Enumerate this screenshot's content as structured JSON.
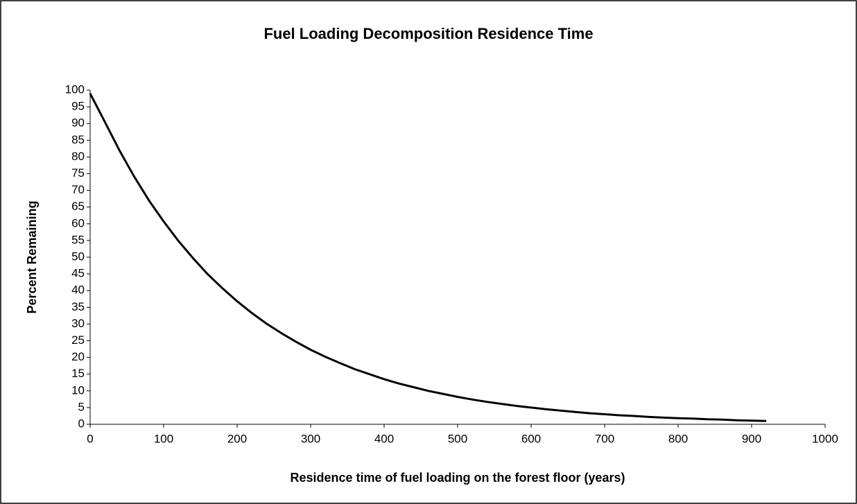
{
  "chart_data": {
    "type": "line",
    "title": "Fuel Loading Decomposition Residence Time",
    "x_label": "Residence time of fuel loading on the forest floor (years)",
    "y_label": "Percent Remaining",
    "x": [
      0,
      20,
      40,
      60,
      80,
      100,
      120,
      140,
      160,
      180,
      200,
      220,
      240,
      260,
      280,
      300,
      320,
      340,
      360,
      380,
      400,
      420,
      440,
      460,
      480,
      500,
      520,
      540,
      560,
      580,
      600,
      620,
      640,
      660,
      680,
      700,
      720,
      740,
      760,
      780,
      800,
      820,
      840,
      860,
      880,
      900,
      920
    ],
    "values": [
      99,
      90.5,
      81.9,
      74.1,
      67,
      60.7,
      54.9,
      49.7,
      44.9,
      40.7,
      36.8,
      33.3,
      30.1,
      27.3,
      24.7,
      22.3,
      20.2,
      18.3,
      16.5,
      15,
      13.5,
      12.2,
      11.1,
      10,
      9.1,
      8.2,
      7.4,
      6.7,
      6.1,
      5.5,
      5,
      4.5,
      4.1,
      3.7,
      3.3,
      3,
      2.7,
      2.5,
      2.2,
      2,
      1.8,
      1.7,
      1.5,
      1.4,
      1.2,
      1.1,
      1
    ],
    "color": "#000000",
    "xlim": [
      0,
      1000
    ],
    "xticks": [
      0,
      100,
      200,
      300,
      400,
      500,
      600,
      700,
      800,
      900,
      1000
    ],
    "ylim": [
      0,
      100
    ],
    "yticks": [
      0,
      5,
      10,
      15,
      20,
      25,
      30,
      35,
      40,
      45,
      50,
      55,
      60,
      65,
      70,
      75,
      80,
      85,
      90,
      95,
      100
    ],
    "grid": false
  }
}
